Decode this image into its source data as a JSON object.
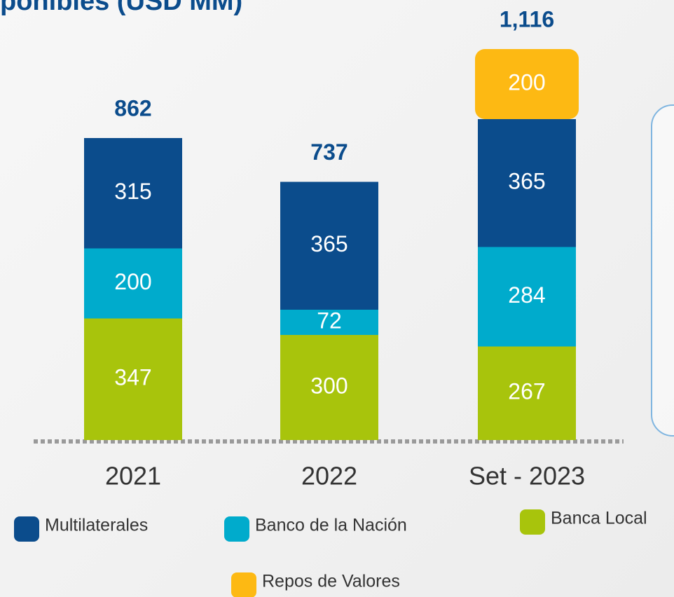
{
  "chart_data": {
    "type": "stacked-bar",
    "title": "ponibles (USD MM)",
    "categories": [
      "2021",
      "2022",
      "Set - 2023"
    ],
    "series": [
      {
        "name": "Banca Local",
        "color": "#a8c40c",
        "values": [
          347,
          300,
          267
        ]
      },
      {
        "name": "Banco de la Nación",
        "color": "#00abcc",
        "values": [
          200,
          72,
          284
        ]
      },
      {
        "name": "Multilaterales",
        "color": "#0b4c8c",
        "values": [
          315,
          365,
          365
        ]
      },
      {
        "name": "Repos de Valores",
        "color": "#fdb913",
        "values": [
          null,
          null,
          200
        ]
      }
    ],
    "totals": [
      862,
      737,
      1116
    ],
    "total_labels": [
      "862",
      "737",
      "1,116"
    ],
    "ylim": [
      0,
      1200
    ]
  }
}
